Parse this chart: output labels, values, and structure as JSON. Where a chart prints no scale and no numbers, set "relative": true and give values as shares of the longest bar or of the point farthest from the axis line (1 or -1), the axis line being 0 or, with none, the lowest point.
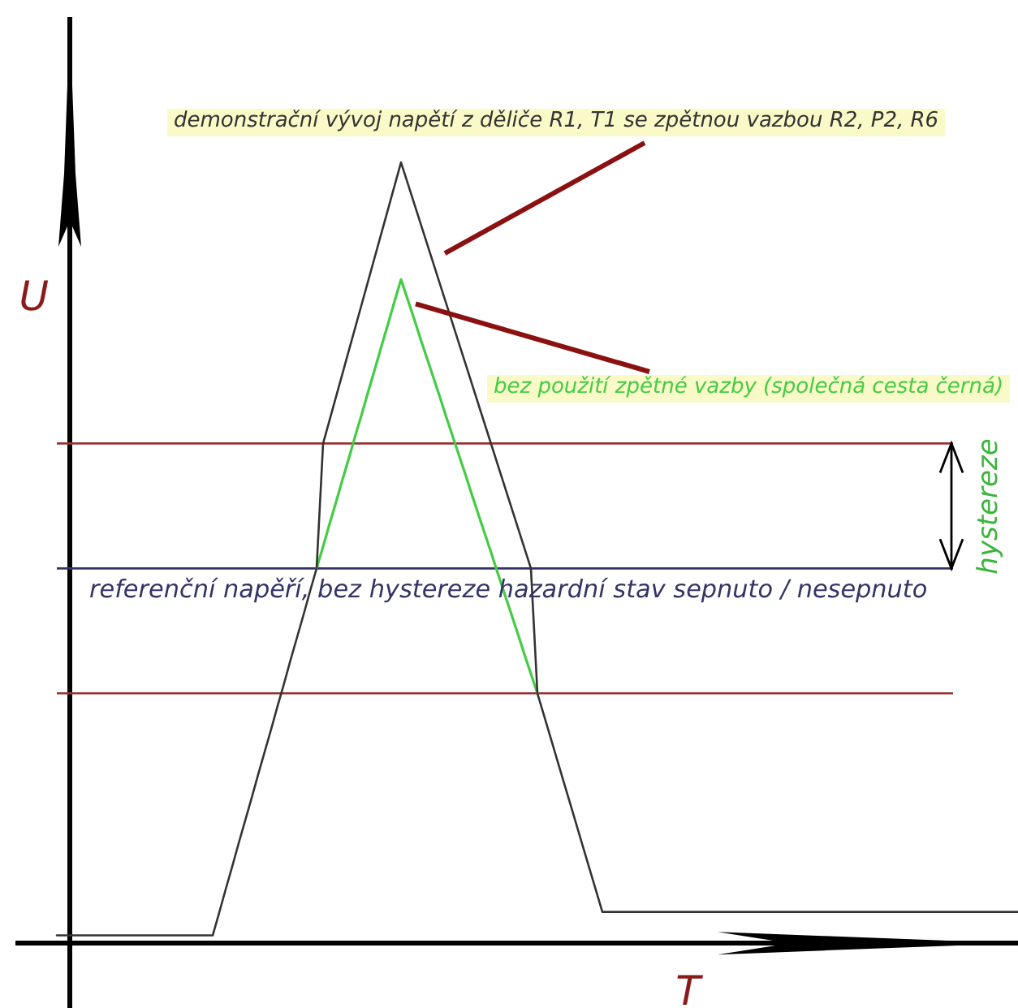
{
  "chart_data": {
    "type": "line",
    "relative": true,
    "xlabel": "T",
    "ylabel": "U",
    "tick_labels": false,
    "categories": [
      null,
      null,
      null,
      null,
      null,
      null,
      null,
      null,
      null,
      null,
      null,
      null,
      null,
      null,
      null,
      null,
      null,
      null,
      null,
      null,
      null,
      null,
      null,
      null,
      null,
      null,
      null,
      null,
      null,
      null,
      null,
      null,
      null,
      null,
      null,
      null,
      null,
      null,
      null,
      null,
      null,
      null,
      null,
      null,
      null,
      null,
      null,
      null,
      null,
      null,
      null,
      null,
      null,
      null,
      null,
      null,
      null,
      null,
      null,
      null,
      null,
      null,
      null,
      null,
      null,
      null,
      null,
      null,
      null,
      null,
      null,
      null,
      null,
      null,
      null,
      null,
      null,
      null,
      null,
      null,
      null,
      null,
      null,
      null,
      null,
      null,
      null,
      null,
      null,
      null,
      null,
      null,
      null,
      null,
      null,
      null,
      null,
      null,
      null,
      null,
      null,
      null,
      null,
      null,
      null,
      null,
      null,
      null,
      null,
      null,
      null,
      null,
      null,
      null,
      null,
      null,
      null,
      null,
      null,
      null,
      null,
      null,
      null,
      null,
      null,
      null,
      null,
      null,
      null,
      null,
      null,
      null,
      null,
      null,
      null,
      null,
      null,
      null,
      null,
      null,
      null,
      null,
      null,
      null,
      null,
      null,
      null,
      null,
      null,
      null,
      null,
      null,
      null,
      null,
      null
    ],
    "series": [
      {
        "name": "demonstrační vývoj napětí z děliče R1, T1 se zpětnou vazbou R2, P2, R6",
        "color": "#333333",
        "values": [
          null,
          null,
          null,
          null,
          null,
          null,
          0.01,
          0.01,
          0.01,
          0.01,
          0.01,
          0.01,
          0.01,
          0.01,
          0.01,
          0.01,
          0.01,
          0.01,
          0.01,
          0.01,
          0.01,
          0.01,
          0.01,
          0.01,
          0.01,
          0.01,
          0.01,
          0.01,
          0.01,
          0.01,
          0.01,
          0.039,
          0.069,
          0.098,
          0.128,
          0.157,
          0.186,
          0.216,
          0.245,
          0.274,
          0.304,
          0.333,
          0.363,
          0.392,
          0.421,
          0.451,
          0.48,
          0.64,
          0.67,
          0.7,
          0.73,
          0.76,
          0.79,
          0.82,
          0.85,
          0.88,
          0.91,
          0.94,
          0.97,
          1,
          0.974,
          0.948,
          0.922,
          0.896,
          0.87,
          0.844,
          0.818,
          0.792,
          0.766,
          0.74,
          0.714,
          0.688,
          0.662,
          0.636,
          0.61,
          0.584,
          0.558,
          0.532,
          0.506,
          0.48,
          0.32,
          0.292,
          0.264,
          0.236,
          0.208,
          0.18,
          0.152,
          0.124,
          0.096,
          0.068,
          0.04,
          0.04,
          0.04,
          0.04,
          0.04,
          0.04,
          0.04,
          0.04,
          0.04,
          0.04,
          0.04,
          0.04,
          0.04,
          0.04,
          0.04,
          0.04,
          0.04,
          0.04,
          0.04,
          0.04,
          0.04,
          0.04,
          0.04,
          0.04,
          0.04,
          0.04,
          0.04,
          0.04,
          0.04,
          0.04,
          0.04,
          0.04,
          0.04,
          0.04,
          0.04,
          0.04,
          0.04,
          0.04,
          0.04,
          0.04,
          0.04,
          0.04,
          0.04,
          0.04,
          0.04,
          0.04,
          0.04,
          0.04,
          0.04,
          0.04,
          0.04,
          0.04,
          0.04,
          0.04,
          0.04,
          0.04,
          0.04,
          0.04,
          0.04,
          0.04,
          0.04,
          0.04,
          0.04,
          0.04,
          0.04
        ]
      },
      {
        "name": "bez použití zpětné vazby (společná cesta černá)",
        "color": "#44cc44",
        "values": [
          null,
          null,
          null,
          null,
          null,
          null,
          null,
          null,
          null,
          null,
          null,
          null,
          null,
          null,
          null,
          null,
          null,
          null,
          null,
          null,
          null,
          null,
          null,
          null,
          null,
          null,
          null,
          null,
          null,
          null,
          null,
          null,
          null,
          null,
          null,
          null,
          null,
          null,
          null,
          null,
          null,
          null,
          null,
          null,
          null,
          null,
          0.48,
          0.508,
          0.537,
          0.565,
          0.594,
          0.622,
          0.651,
          0.679,
          0.708,
          0.736,
          0.765,
          0.793,
          0.822,
          0.85,
          0.825,
          0.8,
          0.774,
          0.749,
          0.724,
          0.699,
          0.673,
          0.648,
          0.623,
          0.598,
          0.572,
          0.547,
          0.522,
          0.497,
          0.471,
          0.446,
          0.421,
          0.396,
          0.37,
          0.345,
          0.32,
          null,
          null,
          null,
          null,
          null,
          null,
          null,
          null,
          null,
          null,
          null,
          null,
          null,
          null,
          null,
          null,
          null,
          null,
          null,
          null,
          null,
          null,
          null,
          null,
          null,
          null,
          null,
          null,
          null,
          null,
          null,
          null,
          null,
          null,
          null,
          null,
          null,
          null,
          null,
          null,
          null,
          null,
          null,
          null,
          null,
          null,
          null,
          null,
          null,
          null,
          null,
          null,
          null,
          null,
          null,
          null,
          null,
          null,
          null,
          null,
          null,
          null,
          null,
          null,
          null,
          null,
          null,
          null,
          null,
          null,
          null,
          null,
          null,
          null
        ]
      }
    ],
    "ref_lines": [
      {
        "axis": "y",
        "value": 0.64,
        "color": "#993333"
      },
      {
        "axis": "y",
        "value": 0.48,
        "color": "#333366",
        "label": "referenční napěří, bez hystereze hazardní stav sepnuto / nesepnuto"
      },
      {
        "axis": "y",
        "value": 0.32,
        "color": "#993333"
      }
    ],
    "annotations": [
      "hystereze"
    ]
  }
}
